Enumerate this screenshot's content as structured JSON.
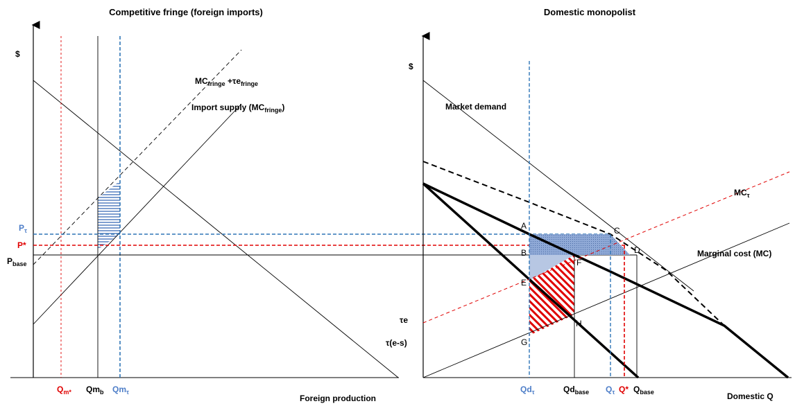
{
  "colors": {
    "red": "#e00000",
    "blue": "#2e75b6",
    "blue_text": "#4e7ec8",
    "fill_blue": "#7f9fd0",
    "black": "#000000"
  },
  "left_panel": {
    "title": "Competitive fringe (foreign imports)",
    "y_axis": "$",
    "x_axis": "Foreign production",
    "curve_mc_tax": {
      "base": "MC",
      "sub": "fringe",
      "mid": " +τe",
      "sub2": "fringe"
    },
    "curve_import_supply": {
      "base": "Import supply  (MC",
      "sub": "fringe",
      "end": ")"
    },
    "price_labels": {
      "p_tau": {
        "base": "P",
        "sub": "τ"
      },
      "p_star": {
        "base": "P*"
      },
      "p_base": {
        "base": "P",
        "sub": "base"
      }
    },
    "qty_labels": {
      "qm_star": {
        "base": "Q",
        "sub": "m*"
      },
      "qm_b": {
        "base": "Qm",
        "sub": "b"
      },
      "qm_tau": {
        "base": "Qm",
        "sub": "τ"
      }
    }
  },
  "right_panel": {
    "title": "Domestic monopolist",
    "y_axis": "$",
    "x_axis": "Domestic Q",
    "market_demand": "Market demand",
    "marginal_cost": "Marginal cost (MC)",
    "mc_tau": {
      "base": "MC",
      "sub": "τ"
    },
    "tau_e": "τe",
    "tau_e_s": "τ(e-s)",
    "points": [
      "A",
      "B",
      "C",
      "D",
      "E",
      "F",
      "G",
      "H"
    ],
    "qty_labels": {
      "qd_tau": {
        "base": "Qd",
        "sub": "τ"
      },
      "qd_base": {
        "base": "Qd",
        "sub": "base"
      },
      "q_tau": {
        "base": "Q",
        "sub": "τ"
      },
      "q_star": {
        "base": "Q*"
      },
      "q_base": {
        "base": "Q",
        "sub": "base"
      }
    }
  }
}
